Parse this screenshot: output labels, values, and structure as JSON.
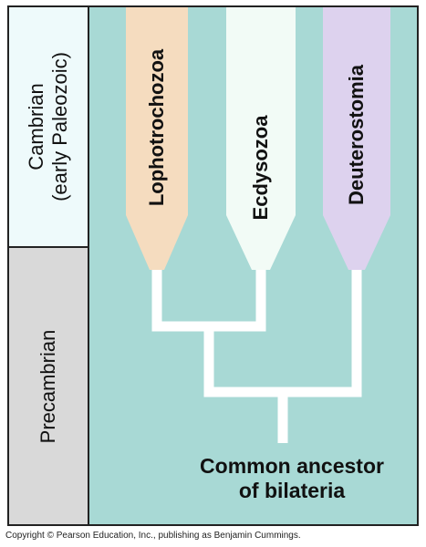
{
  "eras": {
    "cambrian": {
      "line1": "Cambrian",
      "line2": "(early Paleozoic)",
      "color": "#eefafb"
    },
    "precambrian": {
      "label": "Precambrian",
      "color": "#d9d9d9"
    }
  },
  "clades": [
    {
      "name": "Lophotrochozoa",
      "color": "#f5dcbf"
    },
    {
      "name": "Ecdysozoa",
      "color": "#f2fbf6"
    },
    {
      "name": "Deuterostomia",
      "color": "#ddd2ee"
    }
  ],
  "ancestor": {
    "line1": "Common ancestor",
    "line2": "of bilateria"
  },
  "background_color": "#a8d9d5",
  "branch_color": "#ffffff",
  "copyright": "Copyright © Pearson Education, Inc., publishing as Benjamin Cummings."
}
